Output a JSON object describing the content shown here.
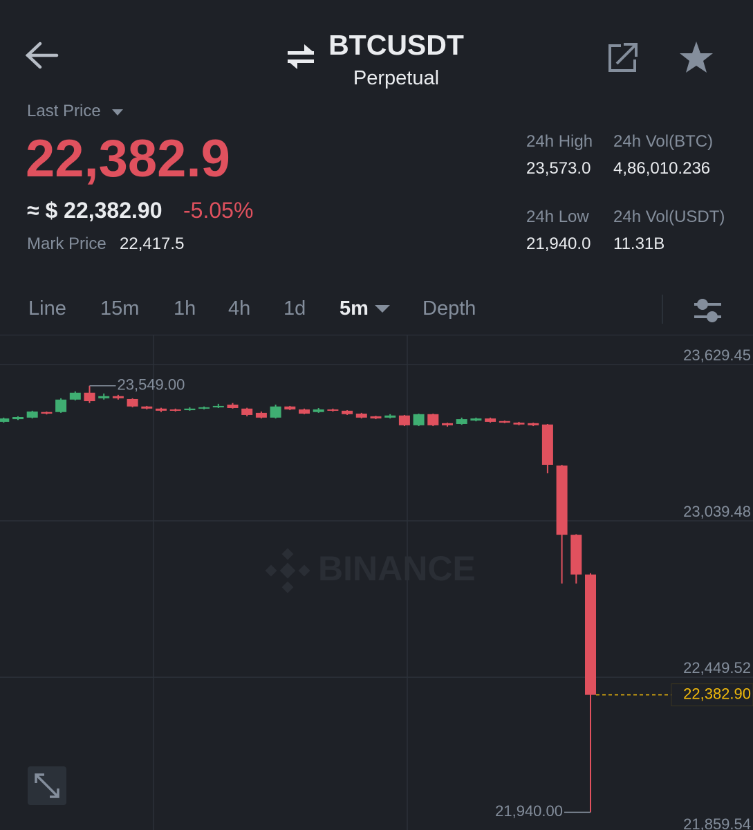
{
  "header": {
    "title": "BTCUSDT",
    "subtitle": "Perpetual"
  },
  "price": {
    "label": "Last Price",
    "last": "22,382.9",
    "approx": "≈ $ 22,382.90",
    "change": "-5.05%",
    "mark_label": "Mark Price",
    "mark": "22,417.5"
  },
  "stats": [
    {
      "label": "24h High",
      "value": "23,573.0"
    },
    {
      "label": "24h Vol(BTC)",
      "value": "4,86,010.236"
    },
    {
      "label": "24h Low",
      "value": "21,940.0"
    },
    {
      "label": "24h Vol(USDT)",
      "value": "11.31B"
    }
  ],
  "tabs": [
    "Line",
    "15m",
    "1h",
    "4h",
    "1d",
    "5m",
    "Depth"
  ],
  "chart_data": {
    "type": "candlestick",
    "watermark": "BINANCE",
    "up_color": "#3fae72",
    "down_color": "#e0515e",
    "open": [
      23413,
      23423,
      23429,
      23450,
      23450,
      23497,
      23523,
      23502,
      23510,
      23499,
      23471,
      23463,
      23460,
      23457,
      23463,
      23468,
      23478,
      23463,
      23447,
      23429,
      23471,
      23460,
      23450,
      23460,
      23455,
      23444,
      23434,
      23429,
      23437,
      23400,
      23442,
      23408,
      23405,
      23418,
      23426,
      23416,
      23410,
      23408,
      23403,
      23248,
      22987,
      22837
    ],
    "high": [
      23429,
      23434,
      23455,
      23452,
      23502,
      23528,
      23549,
      23520,
      23515,
      23502,
      23473,
      23466,
      23463,
      23468,
      23471,
      23481,
      23484,
      23466,
      23452,
      23478,
      23473,
      23463,
      23465,
      23463,
      23457,
      23447,
      23436,
      23442,
      23439,
      23444,
      23444,
      23410,
      23429,
      23429,
      23429,
      23418,
      23413,
      23410,
      23405,
      23251,
      22989,
      22842
    ],
    "low": [
      23410,
      23420,
      23426,
      23441,
      23447,
      23494,
      23484,
      23497,
      23497,
      23468,
      23460,
      23450,
      23452,
      23455,
      23460,
      23465,
      23463,
      23434,
      23426,
      23426,
      23457,
      23442,
      23447,
      23452,
      23439,
      23426,
      23423,
      23426,
      23397,
      23397,
      23397,
      23395,
      23402,
      23415,
      23410,
      23408,
      23400,
      23397,
      23219,
      22803,
      22803,
      21940
    ],
    "close": [
      23426,
      23431,
      23452,
      23444,
      23497,
      23523,
      23491,
      23510,
      23502,
      23471,
      23463,
      23455,
      23455,
      23463,
      23468,
      23473,
      23465,
      23439,
      23429,
      23471,
      23460,
      23444,
      23460,
      23455,
      23442,
      23429,
      23426,
      23437,
      23400,
      23442,
      23400,
      23400,
      23423,
      23426,
      23413,
      23410,
      23403,
      23400,
      23251,
      22987,
      22837,
      22382.9
    ],
    "ylim": [
      21873,
      23739
    ],
    "yticks": [
      {
        "value": 23629.45,
        "label": "23,629.45"
      },
      {
        "value": 23039.48,
        "label": "23,039.48"
      },
      {
        "value": 22449.52,
        "label": "22,449.52"
      },
      {
        "value": 21859.54,
        "label": "21,859.54"
      }
    ],
    "grid": true,
    "last_price": {
      "value": 22382.9,
      "label": "22,382.90",
      "color": "#f0b90b"
    },
    "max_label": {
      "value": 23549,
      "label": "23,549.00"
    },
    "min_label": {
      "value": 21940,
      "label": "21,940.00"
    }
  }
}
